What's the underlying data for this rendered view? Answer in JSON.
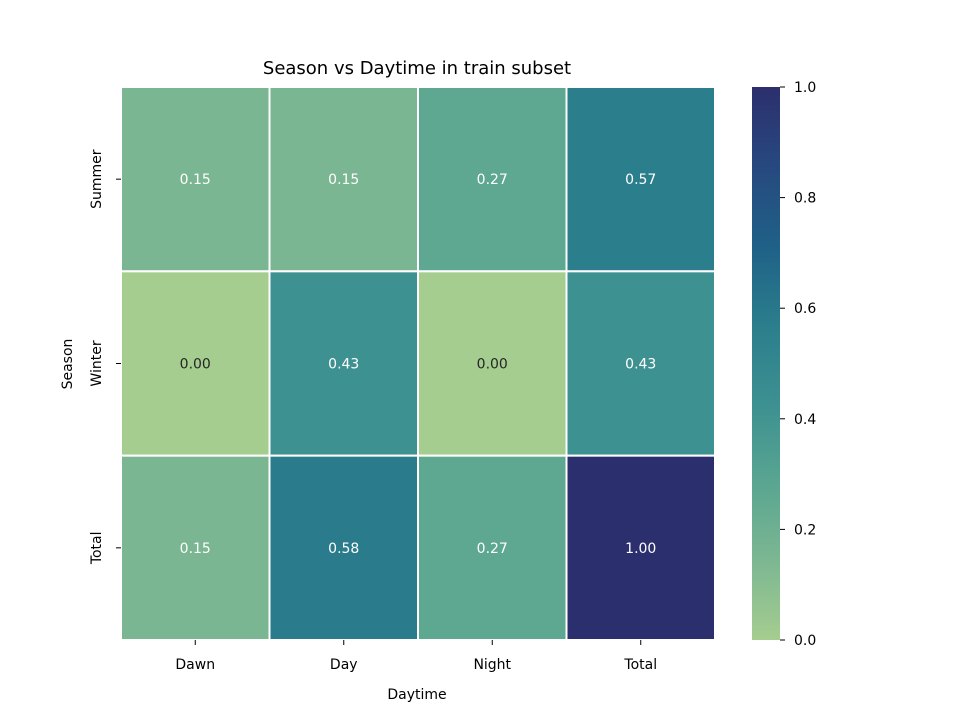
{
  "chart_data": {
    "type": "heatmap",
    "title": "Season vs Daytime in train subset",
    "xlabel": "Daytime",
    "ylabel": "Season",
    "x_categories": [
      "Dawn",
      "Day",
      "Night",
      "Total"
    ],
    "y_categories": [
      "Summer",
      "Winter",
      "Total"
    ],
    "values": [
      [
        0.15,
        0.15,
        0.27,
        0.57
      ],
      [
        0.0,
        0.43,
        0.0,
        0.43
      ],
      [
        0.15,
        0.58,
        0.27,
        1.0
      ]
    ],
    "cell_labels": [
      [
        "0.15",
        "0.15",
        "0.27",
        "0.57"
      ],
      [
        "0.00",
        "0.43",
        "0.00",
        "0.43"
      ],
      [
        "0.15",
        "0.58",
        "0.27",
        "1.00"
      ]
    ],
    "colorbar": {
      "range": [
        0.0,
        1.0
      ],
      "ticks": [
        0.0,
        0.2,
        0.4,
        0.6,
        0.8,
        1.0
      ],
      "tick_labels": [
        "0.0",
        "0.2",
        "0.4",
        "0.6",
        "0.8",
        "1.0"
      ]
    },
    "colormap": [
      "#a5cd8f",
      "#7db792",
      "#5aa691",
      "#3e9191",
      "#2b7e8c",
      "#1f6187",
      "#27487f",
      "#2c2f6d"
    ]
  }
}
